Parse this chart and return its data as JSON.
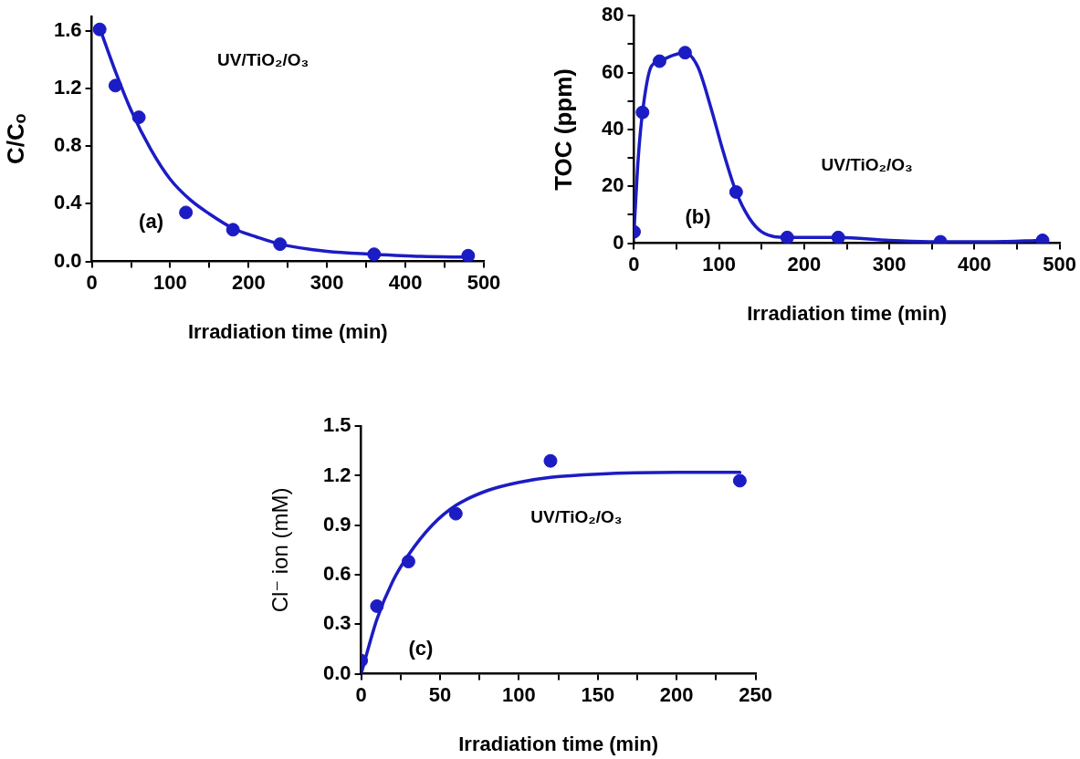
{
  "chart_data": [
    {
      "type": "scatter",
      "xlabel": "Irradiation time (min)",
      "ylabel": "C/Cₒ",
      "annotations": [
        "UV/TiO₂/O₃",
        "(a)"
      ],
      "marker": "circle",
      "xlim": [
        0,
        500
      ],
      "xticks": [
        0,
        {
          "value": 50,
          "label": null
        },
        100,
        {
          "value": 150,
          "label": null
        },
        200,
        {
          "value": 250,
          "label": null
        },
        300,
        {
          "value": 350,
          "label": null
        },
        400,
        {
          "value": 450,
          "label": null
        },
        500
      ],
      "ylim": [
        0,
        1.7
      ],
      "yticks": [
        {
          "value": 0,
          "label": "0.0"
        },
        0.4,
        0.8,
        1.2,
        1.6
      ],
      "series": [
        {
          "color": "#1c1cc4",
          "x": [
            10,
            30,
            60,
            120,
            180,
            240,
            360,
            480
          ],
          "values": [
            1.61,
            1.22,
            1.0,
            0.34,
            0.22,
            0.12,
            0.05,
            0.04
          ]
        },
        {
          "type": "line",
          "marker": "none",
          "color": "#1c1cc4",
          "x": [
            10,
            30,
            50,
            75,
            100,
            125,
            150,
            180,
            210,
            240,
            300,
            360,
            420,
            480
          ],
          "values": [
            1.62,
            1.32,
            1.05,
            0.78,
            0.57,
            0.43,
            0.33,
            0.23,
            0.17,
            0.12,
            0.07,
            0.05,
            0.035,
            0.03
          ]
        }
      ]
    },
    {
      "type": "scatter",
      "xlabel": "Irradiation time (min)",
      "ylabel": "TOC (ppm)",
      "annotations": [
        "UV/TiO₂/O₃",
        "(b)"
      ],
      "marker": "circle",
      "xlim": [
        0,
        500
      ],
      "xticks": [
        0,
        {
          "value": 50,
          "label": null
        },
        100,
        {
          "value": 150,
          "label": null
        },
        200,
        {
          "value": 250,
          "label": null
        },
        300,
        {
          "value": 350,
          "label": null
        },
        400,
        {
          "value": 450,
          "label": null
        },
        500
      ],
      "ylim": [
        0,
        80
      ],
      "yticks": [
        0,
        {
          "value": 10,
          "label": null
        },
        20,
        {
          "value": 30,
          "label": null
        },
        40,
        {
          "value": 50,
          "label": null
        },
        60,
        {
          "value": 70,
          "label": null
        },
        80
      ],
      "series": [
        {
          "color": "#1c1cc4",
          "x": [
            0,
            10,
            30,
            60,
            120,
            180,
            240,
            360,
            480
          ],
          "values": [
            4,
            46,
            64,
            67,
            18,
            2,
            2,
            0.5,
            1
          ]
        },
        {
          "type": "line",
          "marker": "none",
          "color": "#1c1cc4",
          "x": [
            0,
            5,
            10,
            20,
            30,
            45,
            60,
            75,
            90,
            105,
            120,
            135,
            150,
            180,
            240,
            300,
            360,
            420,
            480
          ],
          "values": [
            4,
            30,
            46,
            62,
            64,
            66,
            67,
            62,
            48,
            32,
            18,
            9,
            4,
            2,
            2,
            1,
            0.5,
            0.5,
            1
          ]
        }
      ]
    },
    {
      "type": "scatter",
      "xlabel": "Irradiation time (min)",
      "ylabel": "Cl⁻ ion (mM)",
      "annotations": [
        "UV/TiO₂/O₃",
        "(c)"
      ],
      "marker": "circle",
      "xlim": [
        0,
        250
      ],
      "xticks": [
        0,
        {
          "value": 25,
          "label": null
        },
        50,
        {
          "value": 75,
          "label": null
        },
        100,
        {
          "value": 125,
          "label": null
        },
        150,
        {
          "value": 175,
          "label": null
        },
        200,
        {
          "value": 225,
          "label": null
        },
        250
      ],
      "ylim": [
        0,
        1.5
      ],
      "yticks": [
        {
          "value": 0,
          "label": "0.0"
        },
        0.3,
        0.6,
        0.9,
        1.2,
        1.5
      ],
      "series": [
        {
          "color": "#1c1cc4",
          "x": [
            0,
            10,
            30,
            60,
            120,
            240
          ],
          "values": [
            0.08,
            0.41,
            0.68,
            0.97,
            1.29,
            1.17
          ]
        },
        {
          "type": "line",
          "marker": "none",
          "color": "#1c1cc4",
          "x": [
            0,
            10,
            20,
            30,
            45,
            60,
            80,
            100,
            120,
            150,
            200,
            240
          ],
          "values": [
            0,
            0.33,
            0.56,
            0.72,
            0.9,
            1.02,
            1.11,
            1.16,
            1.19,
            1.21,
            1.22,
            1.22
          ]
        }
      ]
    }
  ]
}
